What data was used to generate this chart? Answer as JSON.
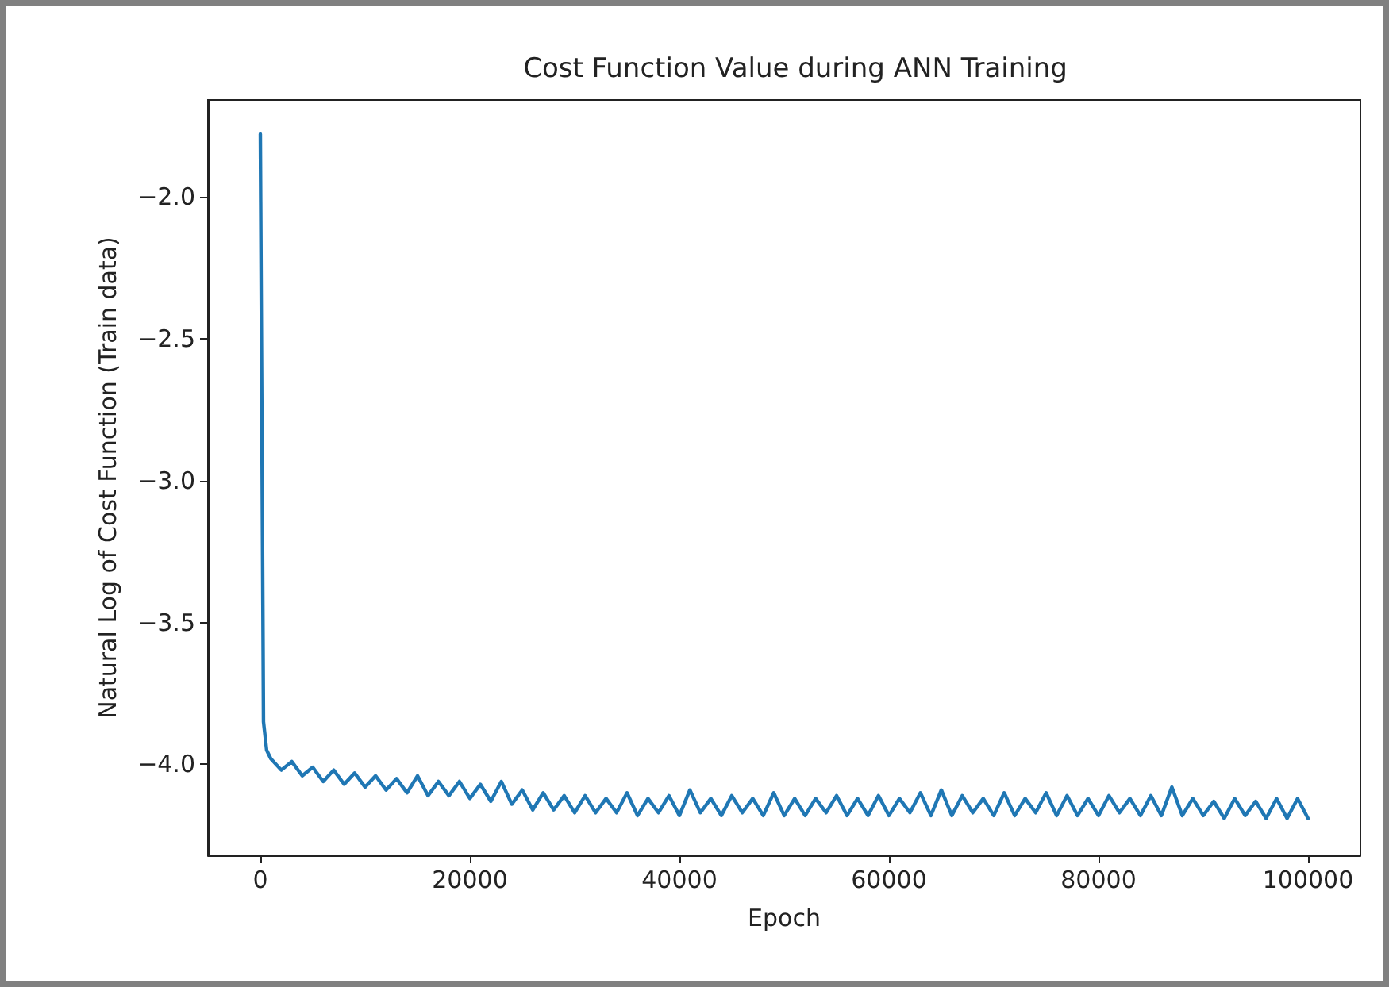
{
  "chart_data": {
    "type": "line",
    "title": "Cost Function Value during ANN Training",
    "xlabel": "Epoch",
    "ylabel": "Natural Log of Cost Function (Train data)",
    "xlim": [
      -5000,
      105000
    ],
    "xticks": [
      0,
      20000,
      40000,
      60000,
      80000,
      100000
    ],
    "ylim": [
      -4.32,
      -1.66
    ],
    "yticks": [
      {
        "value": -4.0,
        "label": "−4.0"
      },
      {
        "value": -3.5,
        "label": "−3.5"
      },
      {
        "value": -3.0,
        "label": "−3.0"
      },
      {
        "value": -2.5,
        "label": "−2.5"
      },
      {
        "value": -2.0,
        "label": "−2.0"
      }
    ],
    "grid": false,
    "x": [
      0,
      300,
      600,
      1000,
      2000,
      3000,
      4000,
      5000,
      6000,
      7000,
      8000,
      9000,
      10000,
      11000,
      12000,
      13000,
      14000,
      15000,
      16000,
      17000,
      18000,
      19000,
      20000,
      21000,
      22000,
      23000,
      24000,
      25000,
      26000,
      27000,
      28000,
      29000,
      30000,
      31000,
      32000,
      33000,
      34000,
      35000,
      36000,
      37000,
      38000,
      39000,
      40000,
      41000,
      42000,
      43000,
      44000,
      45000,
      46000,
      47000,
      48000,
      49000,
      50000,
      51000,
      52000,
      53000,
      54000,
      55000,
      56000,
      57000,
      58000,
      59000,
      60000,
      61000,
      62000,
      63000,
      64000,
      65000,
      66000,
      67000,
      68000,
      69000,
      70000,
      71000,
      72000,
      73000,
      74000,
      75000,
      76000,
      77000,
      78000,
      79000,
      80000,
      81000,
      82000,
      83000,
      84000,
      85000,
      86000,
      87000,
      88000,
      89000,
      90000,
      91000,
      92000,
      93000,
      94000,
      95000,
      96000,
      97000,
      98000,
      99000,
      100000
    ],
    "series": [
      {
        "color": "#1f77b4",
        "values": [
          -1.78,
          -3.85,
          -3.95,
          -3.98,
          -4.02,
          -3.99,
          -4.04,
          -4.01,
          -4.06,
          -4.02,
          -4.07,
          -4.03,
          -4.08,
          -4.04,
          -4.09,
          -4.05,
          -4.1,
          -4.04,
          -4.11,
          -4.06,
          -4.11,
          -4.06,
          -4.12,
          -4.07,
          -4.13,
          -4.06,
          -4.14,
          -4.09,
          -4.16,
          -4.1,
          -4.16,
          -4.11,
          -4.17,
          -4.11,
          -4.17,
          -4.12,
          -4.17,
          -4.1,
          -4.18,
          -4.12,
          -4.17,
          -4.11,
          -4.18,
          -4.09,
          -4.17,
          -4.12,
          -4.18,
          -4.11,
          -4.17,
          -4.12,
          -4.18,
          -4.1,
          -4.18,
          -4.12,
          -4.18,
          -4.12,
          -4.17,
          -4.11,
          -4.18,
          -4.12,
          -4.18,
          -4.11,
          -4.18,
          -4.12,
          -4.17,
          -4.1,
          -4.18,
          -4.09,
          -4.18,
          -4.11,
          -4.17,
          -4.12,
          -4.18,
          -4.1,
          -4.18,
          -4.12,
          -4.17,
          -4.1,
          -4.18,
          -4.11,
          -4.18,
          -4.12,
          -4.18,
          -4.11,
          -4.17,
          -4.12,
          -4.18,
          -4.11,
          -4.18,
          -4.08,
          -4.18,
          -4.12,
          -4.18,
          -4.13,
          -4.19,
          -4.12,
          -4.18,
          -4.13,
          -4.19,
          -4.12,
          -4.19,
          -4.12,
          -4.19
        ]
      }
    ]
  }
}
